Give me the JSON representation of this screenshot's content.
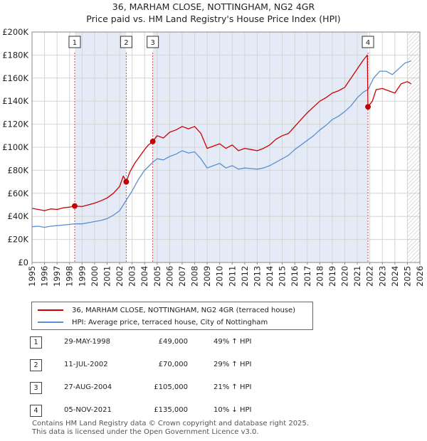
{
  "title_line1": "36, MARHAM CLOSE, NOTTINGHAM, NG2 4GR",
  "title_line2": "Price paid vs. HM Land Registry's House Price Index (HPI)",
  "legend": {
    "price_label": "36, MARHAM CLOSE, NOTTINGHAM, NG2 4GR (terraced house)",
    "hpi_label": "HPI: Average price, terraced house, City of Nottingham"
  },
  "colors": {
    "price": "#cc0000",
    "hpi": "#5b8fd0",
    "shade": "#e4ebf7",
    "grid": "#d4d4d4",
    "marker_line": "#dd4444"
  },
  "sales": [
    {
      "num": "1",
      "date": "29-MAY-1998",
      "price": "£49,000",
      "hpi": "49% ↑ HPI"
    },
    {
      "num": "2",
      "date": "11-JUL-2002",
      "price": "£70,000",
      "hpi": "29% ↑ HPI"
    },
    {
      "num": "3",
      "date": "27-AUG-2004",
      "price": "£105,000",
      "hpi": "21% ↑ HPI"
    },
    {
      "num": "4",
      "date": "05-NOV-2021",
      "price": "£135,000",
      "hpi": "10% ↓ HPI"
    }
  ],
  "footer": {
    "line1": "Contains HM Land Registry data © Crown copyright and database right 2025.",
    "line2": "This data is licensed under the Open Government Licence v3.0."
  },
  "chart_data": {
    "type": "line",
    "title": "36, MARHAM CLOSE, NOTTINGHAM, NG2 4GR — Price paid vs. HM Land Registry's House Price Index (HPI)",
    "xlabel": "",
    "ylabel": "",
    "xlim": [
      1995,
      2026
    ],
    "ylim": [
      0,
      200000
    ],
    "x_ticks": [
      "1995",
      "1996",
      "1997",
      "1998",
      "1999",
      "2000",
      "2001",
      "2002",
      "2003",
      "2004",
      "2005",
      "2006",
      "2007",
      "2008",
      "2009",
      "2010",
      "2011",
      "2012",
      "2013",
      "2014",
      "2015",
      "2016",
      "2017",
      "2018",
      "2019",
      "2020",
      "2021",
      "2022",
      "2023",
      "2024",
      "2025",
      "2026"
    ],
    "y_ticks": [
      {
        "value": 0,
        "label": "£0"
      },
      {
        "value": 20000,
        "label": "£20K"
      },
      {
        "value": 40000,
        "label": "£40K"
      },
      {
        "value": 60000,
        "label": "£60K"
      },
      {
        "value": 80000,
        "label": "£80K"
      },
      {
        "value": 100000,
        "label": "£100K"
      },
      {
        "value": 120000,
        "label": "£120K"
      },
      {
        "value": 140000,
        "label": "£140K"
      },
      {
        "value": 160000,
        "label": "£160K"
      },
      {
        "value": 180000,
        "label": "£180K"
      },
      {
        "value": 200000,
        "label": "£200K"
      }
    ],
    "grid": true,
    "shaded_ranges": [
      [
        1998.41,
        2002.53
      ],
      [
        2004.65,
        2021.85
      ]
    ],
    "future_hatch_from": 2025.0,
    "sale_markers": [
      {
        "label": "1",
        "x": 1998.41,
        "y": 49000
      },
      {
        "label": "2",
        "x": 2002.53,
        "y": 70000
      },
      {
        "label": "3",
        "x": 2004.65,
        "y": 105000
      },
      {
        "label": "4",
        "x": 2021.85,
        "y": 135000
      }
    ],
    "series": [
      {
        "name": "36, MARHAM CLOSE, NOTTINGHAM, NG2 4GR (terraced house)",
        "color": "#cc0000",
        "points": [
          [
            1995.0,
            47000
          ],
          [
            1995.5,
            46000
          ],
          [
            1996.0,
            45000
          ],
          [
            1996.5,
            46500
          ],
          [
            1997.0,
            46000
          ],
          [
            1997.5,
            47500
          ],
          [
            1998.0,
            48000
          ],
          [
            1998.41,
            49000
          ],
          [
            1999.0,
            48500
          ],
          [
            1999.5,
            50000
          ],
          [
            2000.0,
            51500
          ],
          [
            2000.5,
            53500
          ],
          [
            2001.0,
            56000
          ],
          [
            2001.5,
            60000
          ],
          [
            2002.0,
            66000
          ],
          [
            2002.3,
            75000
          ],
          [
            2002.53,
            70000
          ],
          [
            2002.8,
            78000
          ],
          [
            2003.2,
            86000
          ],
          [
            2003.6,
            92000
          ],
          [
            2004.0,
            98000
          ],
          [
            2004.3,
            102000
          ],
          [
            2004.65,
            105000
          ],
          [
            2005.0,
            110000
          ],
          [
            2005.5,
            108000
          ],
          [
            2006.0,
            113000
          ],
          [
            2006.5,
            115000
          ],
          [
            2007.0,
            118000
          ],
          [
            2007.5,
            116000
          ],
          [
            2008.0,
            118000
          ],
          [
            2008.5,
            112000
          ],
          [
            2009.0,
            99000
          ],
          [
            2009.5,
            101000
          ],
          [
            2010.0,
            103000
          ],
          [
            2010.5,
            99000
          ],
          [
            2011.0,
            102000
          ],
          [
            2011.5,
            97000
          ],
          [
            2012.0,
            99000
          ],
          [
            2012.5,
            98000
          ],
          [
            2013.0,
            97000
          ],
          [
            2013.5,
            99000
          ],
          [
            2014.0,
            102000
          ],
          [
            2014.5,
            107000
          ],
          [
            2015.0,
            110000
          ],
          [
            2015.5,
            112000
          ],
          [
            2016.0,
            118000
          ],
          [
            2016.5,
            124000
          ],
          [
            2017.0,
            130000
          ],
          [
            2017.5,
            135000
          ],
          [
            2018.0,
            140000
          ],
          [
            2018.5,
            143000
          ],
          [
            2019.0,
            147000
          ],
          [
            2019.5,
            149000
          ],
          [
            2020.0,
            152000
          ],
          [
            2020.5,
            160000
          ],
          [
            2021.0,
            168000
          ],
          [
            2021.5,
            176000
          ],
          [
            2021.8,
            180000
          ],
          [
            2021.85,
            135000
          ],
          [
            2022.2,
            140000
          ],
          [
            2022.5,
            150000
          ],
          [
            2023.0,
            151000
          ],
          [
            2023.5,
            149000
          ],
          [
            2024.0,
            147000
          ],
          [
            2024.5,
            155000
          ],
          [
            2025.0,
            157000
          ],
          [
            2025.3,
            155000
          ]
        ]
      },
      {
        "name": "HPI: Average price, terraced house, City of Nottingham",
        "color": "#5b8fd0",
        "points": [
          [
            1995.0,
            31000
          ],
          [
            1995.5,
            31500
          ],
          [
            1996.0,
            30500
          ],
          [
            1996.5,
            31500
          ],
          [
            1997.0,
            32000
          ],
          [
            1997.5,
            32500
          ],
          [
            1998.0,
            33000
          ],
          [
            1998.41,
            33500
          ],
          [
            1999.0,
            33500
          ],
          [
            1999.5,
            34500
          ],
          [
            2000.0,
            35500
          ],
          [
            2000.5,
            36500
          ],
          [
            2001.0,
            38000
          ],
          [
            2001.5,
            41000
          ],
          [
            2002.0,
            45000
          ],
          [
            2002.53,
            54000
          ],
          [
            2003.0,
            62000
          ],
          [
            2003.5,
            72000
          ],
          [
            2004.0,
            80000
          ],
          [
            2004.65,
            87000
          ],
          [
            2005.0,
            90000
          ],
          [
            2005.5,
            89000
          ],
          [
            2006.0,
            92000
          ],
          [
            2006.5,
            94000
          ],
          [
            2007.0,
            97000
          ],
          [
            2007.5,
            95000
          ],
          [
            2008.0,
            96000
          ],
          [
            2008.5,
            90000
          ],
          [
            2009.0,
            82000
          ],
          [
            2009.5,
            84000
          ],
          [
            2010.0,
            86000
          ],
          [
            2010.5,
            82000
          ],
          [
            2011.0,
            84000
          ],
          [
            2011.5,
            81000
          ],
          [
            2012.0,
            82000
          ],
          [
            2012.5,
            81500
          ],
          [
            2013.0,
            81000
          ],
          [
            2013.5,
            82000
          ],
          [
            2014.0,
            84000
          ],
          [
            2014.5,
            87000
          ],
          [
            2015.0,
            90000
          ],
          [
            2015.5,
            93000
          ],
          [
            2016.0,
            98000
          ],
          [
            2016.5,
            102000
          ],
          [
            2017.0,
            106000
          ],
          [
            2017.5,
            110000
          ],
          [
            2018.0,
            115000
          ],
          [
            2018.5,
            119000
          ],
          [
            2019.0,
            124000
          ],
          [
            2019.5,
            127000
          ],
          [
            2020.0,
            131000
          ],
          [
            2020.5,
            136000
          ],
          [
            2021.0,
            143000
          ],
          [
            2021.5,
            148000
          ],
          [
            2021.85,
            150000
          ],
          [
            2022.3,
            160000
          ],
          [
            2022.8,
            166000
          ],
          [
            2023.3,
            166000
          ],
          [
            2023.8,
            163000
          ],
          [
            2024.3,
            168000
          ],
          [
            2024.8,
            173000
          ],
          [
            2025.3,
            175000
          ]
        ]
      }
    ]
  }
}
